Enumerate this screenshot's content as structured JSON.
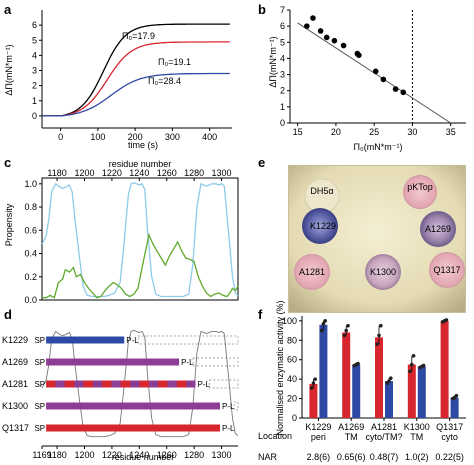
{
  "panels": {
    "a": {
      "letter": "a",
      "xlabel": "time (s)",
      "ylabel": "ΔΠ(mN*m⁻¹)",
      "xticks": [
        "0",
        "100",
        "200",
        "300",
        "400"
      ],
      "yticks": [
        "0",
        "1",
        "2",
        "3",
        "4",
        "5",
        "6"
      ],
      "labels": [
        "Π₀=17.9",
        "Π₀=19.1",
        "Π₀=28.4"
      ]
    },
    "b": {
      "letter": "b",
      "xlabel": "Π₀(mN*m⁻¹)",
      "ylabel": "ΔΠ(mN*m⁻¹)",
      "xticks": [
        "15",
        "20",
        "25",
        "30",
        "35"
      ],
      "yticks": [
        "0",
        "1",
        "2",
        "3",
        "4",
        "5",
        "6",
        "7"
      ]
    },
    "c": {
      "letter": "c",
      "title": "residue number",
      "ylabel": "Propensity",
      "xticks": [
        "1180",
        "1200",
        "1220",
        "1240",
        "1260",
        "1280",
        "1300"
      ],
      "yticks": [
        "0.0",
        "0.2",
        "0.4",
        "0.6",
        "0.8",
        "1.0"
      ]
    },
    "d": {
      "letter": "d",
      "xlabel": "residue number",
      "xticks": [
        "1169",
        "1180",
        "1200",
        "1220",
        "1240",
        "1260",
        "1280",
        "1300"
      ],
      "rows": [
        {
          "name": "K1229",
          "sp": "SP",
          "pl": "P-L"
        },
        {
          "name": "A1269",
          "sp": "SP",
          "pl": "P-L"
        },
        {
          "name": "A1281",
          "sp": "SP",
          "pl": "P-L"
        },
        {
          "name": "K1300",
          "sp": "SP",
          "pl": "P-L"
        },
        {
          "name": "Q1317",
          "sp": "SP",
          "pl": "P-L"
        }
      ]
    },
    "e": {
      "letter": "e",
      "labels": [
        "DH5α",
        "pKTop",
        "K1229",
        "A1269",
        "A1281",
        "K1300",
        "Q1317"
      ]
    },
    "f": {
      "letter": "f",
      "ylabel": "Normalised enzymatic activity (%)",
      "yticks": [
        "0",
        "20",
        "40",
        "60",
        "80",
        "100"
      ],
      "row_labels": {
        "location": "Location",
        "nar": "NAR"
      },
      "groups": [
        {
          "name": "K1229",
          "location": "peri",
          "nar": "2.8(6)"
        },
        {
          "name": "A1269",
          "location": "TM",
          "nar": "0.65(6)"
        },
        {
          "name": "A1281",
          "location": "cyto/TM?",
          "nar": "0.48(7)"
        },
        {
          "name": "K1300",
          "location": "TM",
          "nar": "1.0(2)"
        },
        {
          "name": "Q1317",
          "location": "cyto",
          "nar": "0.22(5)"
        }
      ]
    }
  },
  "colors": {
    "red": "#d8262e",
    "blue": "#2e49a3",
    "purple": "#8e3d95",
    "black": "#000000",
    "cyan": "#8ecbea",
    "green": "#5ea92b",
    "grey": "#808080"
  },
  "chart_data": [
    {
      "type": "line",
      "xlabel": "time (s)",
      "ylabel": "ΔΠ(mN*m⁻¹)",
      "xlim": [
        -50,
        460
      ],
      "ylim": [
        -0.8,
        7
      ],
      "series": [
        {
          "name": "Π₀=17.9",
          "plateau": 6.2,
          "midpoint": 115,
          "width": 30
        },
        {
          "name": "Π₀=19.1",
          "plateau": 5.0,
          "midpoint": 125,
          "width": 33
        },
        {
          "name": "Π₀=28.4",
          "plateau": 2.9,
          "midpoint": 135,
          "width": 40
        }
      ]
    },
    {
      "type": "scatter",
      "xlabel": "Π₀(mN*m⁻¹)",
      "ylabel": "ΔΠ(mN*m⁻¹)",
      "xlim": [
        14,
        37
      ],
      "ylim": [
        0,
        7
      ],
      "points": [
        [
          16.2,
          6.0
        ],
        [
          17.0,
          6.5
        ],
        [
          18.0,
          5.7
        ],
        [
          18.8,
          5.3
        ],
        [
          19.8,
          5.1
        ],
        [
          21.0,
          4.8
        ],
        [
          22.8,
          4.3
        ],
        [
          23.0,
          4.2
        ],
        [
          25.2,
          3.2
        ],
        [
          26.2,
          2.7
        ],
        [
          27.8,
          2.1
        ],
        [
          28.8,
          1.9
        ]
      ],
      "fit": [
        [
          15,
          6.2
        ],
        [
          35,
          0
        ]
      ],
      "vline": 30
    },
    {
      "type": "line",
      "xlabel": "residue number",
      "ylabel": "Propensity",
      "xlim": [
        1169,
        1312
      ],
      "ylim": [
        0,
        1.05
      ],
      "series": [
        {
          "name": "",
          "x": [
            1169,
            1172,
            1174,
            1176,
            1179,
            1181,
            1184,
            1186,
            1189,
            1191,
            1193,
            1196,
            1199,
            1202,
            1206,
            1210,
            1214,
            1218,
            1222,
            1226,
            1229,
            1232,
            1234,
            1236,
            1238,
            1240,
            1242,
            1244,
            1246,
            1249,
            1252,
            1256,
            1260,
            1264,
            1268,
            1272,
            1276,
            1279,
            1282,
            1285,
            1287,
            1289,
            1291,
            1293,
            1296,
            1298,
            1300,
            1302,
            1305,
            1308,
            1310,
            1312
          ],
          "values": [
            0.48,
            0.55,
            0.7,
            0.93,
            1.0,
            0.98,
            0.96,
            0.97,
            0.99,
            0.93,
            0.7,
            0.4,
            0.12,
            0.04,
            0.03,
            0.03,
            0.03,
            0.04,
            0.06,
            0.15,
            0.5,
            0.9,
            1.0,
            1.01,
            1.0,
            0.99,
            1.0,
            0.95,
            0.6,
            0.2,
            0.05,
            0.03,
            0.03,
            0.03,
            0.03,
            0.03,
            0.05,
            0.3,
            0.8,
            1.0,
            0.99,
            0.98,
            0.99,
            1.0,
            1.0,
            0.99,
            1.0,
            0.98,
            0.6,
            0.2,
            0.06,
            0.04
          ]
        },
        {
          "name": "",
          "x": [
            1169,
            1172,
            1175,
            1178,
            1181,
            1184,
            1186,
            1189,
            1192,
            1194,
            1197,
            1200,
            1203,
            1206,
            1209,
            1212,
            1215,
            1218,
            1221,
            1224,
            1227,
            1230,
            1233,
            1236,
            1239,
            1242,
            1245,
            1247,
            1250,
            1253,
            1256,
            1259,
            1262,
            1265,
            1268,
            1271,
            1274,
            1277,
            1280,
            1283,
            1286,
            1289,
            1292,
            1295,
            1298,
            1301,
            1304,
            1306,
            1308,
            1310,
            1312
          ],
          "values": [
            0.02,
            0.02,
            0.04,
            0.02,
            0.15,
            0.18,
            0.26,
            0.24,
            0.28,
            0.2,
            0.22,
            0.15,
            0.1,
            0.06,
            0.02,
            0.03,
            0.08,
            0.12,
            0.15,
            0.13,
            0.1,
            0.05,
            0.03,
            0.05,
            0.1,
            0.28,
            0.45,
            0.56,
            0.48,
            0.42,
            0.36,
            0.3,
            0.38,
            0.44,
            0.5,
            0.42,
            0.36,
            0.35,
            0.33,
            0.2,
            0.12,
            0.06,
            0.03,
            0.05,
            0.06,
            0.04,
            0.03,
            0.06,
            0.1,
            0.08,
            0.12
          ]
        }
      ]
    },
    {
      "type": "bar",
      "ylabel": "Normalised enzymatic activity (%)",
      "categories": [
        "K1229",
        "A1269",
        "A1281",
        "K1300",
        "Q1317"
      ],
      "ylim": [
        0,
        105
      ],
      "series": [
        {
          "name": "",
          "values": [
            35,
            88,
            83,
            55,
            100
          ],
          "points": [
            [
              31,
              36,
              40
            ],
            [
              85,
              90,
              95
            ],
            [
              76,
              85,
              95
            ],
            [
              48,
              55,
              64
            ],
            [
              99,
              100,
              101
            ]
          ]
        },
        {
          "name": "",
          "values": [
            96,
            55,
            38,
            53,
            21
          ],
          "points": [
            [
              90,
              97,
              100
            ],
            [
              54,
              55,
              56
            ],
            [
              36,
              38,
              41
            ],
            [
              52,
              53,
              54
            ],
            [
              20,
              21,
              23
            ]
          ]
        }
      ]
    }
  ]
}
